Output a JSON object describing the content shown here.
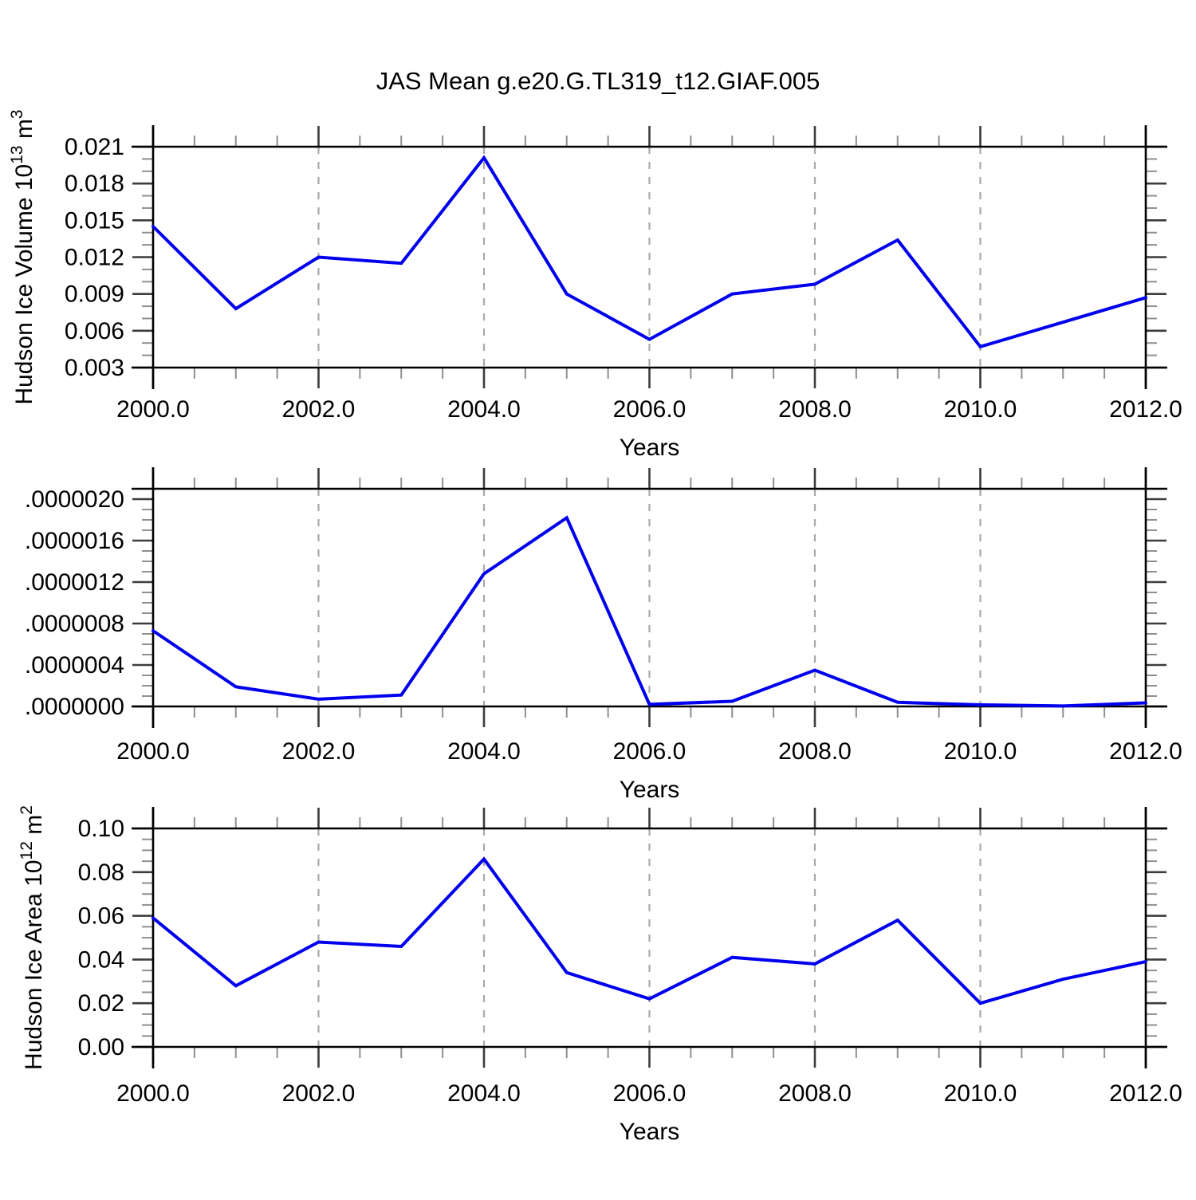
{
  "page_title": "JAS Mean g.e20.G.TL319_t12.GIAF.005",
  "colors": {
    "line": "#0000ee",
    "grid": "#a9a9a9",
    "frame": "#000000",
    "major_tick": "#3c3c3c",
    "minor_tick": "#8f8f8f",
    "text": "#000000",
    "background": "#ffffff"
  },
  "x_axis": {
    "label": "Years",
    "tick_labels": [
      "2000.0",
      "2002.0",
      "2004.0",
      "2006.0",
      "2008.0",
      "2010.0",
      "2012.0"
    ],
    "min": 2000,
    "max": 2012,
    "major_step": 2,
    "minor_step": 0.5,
    "grid_years": [
      2002,
      2004,
      2006,
      2008,
      2010
    ]
  },
  "chart_data": [
    {
      "type": "line",
      "name": "hudson-ice-volume",
      "ylabel_text": "Hudson Ice Volume 10¹³ m³",
      "ylabel_parts": [
        [
          "Hudson Ice Volume 10",
          false
        ],
        [
          "13",
          true
        ],
        [
          " m",
          false
        ],
        [
          "3",
          true
        ]
      ],
      "xlabel": "Years",
      "x": [
        2000,
        2001,
        2002,
        2003,
        2004,
        2005,
        2006,
        2007,
        2008,
        2009,
        2010,
        2011,
        2012
      ],
      "y": [
        0.0145,
        0.0078,
        0.012,
        0.0115,
        0.0201,
        0.009,
        0.0053,
        0.009,
        0.0098,
        0.0134,
        0.0047,
        0.0067,
        0.0087
      ],
      "ylim": [
        0.003,
        0.021
      ],
      "ymajor": 0.003,
      "yminor": 0.001,
      "ytick_labels": [
        "0.003",
        "0.006",
        "0.009",
        "0.012",
        "0.015",
        "0.018",
        "0.021"
      ],
      "xlim": [
        2000,
        2012
      ],
      "grid": "vertical-dashed",
      "legend": "none"
    },
    {
      "type": "line",
      "name": "middle-series",
      "ylabel_text": "",
      "ylabel_parts": [],
      "xlabel": "Years",
      "x": [
        2000,
        2001,
        2002,
        2003,
        2004,
        2005,
        2006,
        2007,
        2008,
        2009,
        2010,
        2011,
        2012
      ],
      "y": [
        7.3e-07,
        1.9e-07,
        7e-08,
        1.1e-07,
        1.28e-06,
        1.82e-06,
        2e-08,
        5e-08,
        3.5e-07,
        4e-08,
        1.5e-08,
        5e-09,
        3.5e-08
      ],
      "ylim": [
        0.0,
        2.1e-06
      ],
      "ymajor": 4e-07,
      "yminor": 1e-07,
      "ytick_labels": [
        ".0000000",
        ".0000004",
        ".0000008",
        ".0000012",
        ".0000016",
        ".0000020"
      ],
      "xlim": [
        2000,
        2012
      ],
      "grid": "vertical-dashed",
      "legend": "none"
    },
    {
      "type": "line",
      "name": "hudson-ice-area",
      "ylabel_text": "Hudson Ice Area 10¹² m²",
      "ylabel_parts": [
        [
          "Hudson Ice Area 10",
          false
        ],
        [
          "12",
          true
        ],
        [
          " m",
          false
        ],
        [
          "2",
          true
        ]
      ],
      "xlabel": "Years",
      "x": [
        2000,
        2001,
        2002,
        2003,
        2004,
        2005,
        2006,
        2007,
        2008,
        2009,
        2010,
        2011,
        2012
      ],
      "y": [
        0.059,
        0.028,
        0.048,
        0.046,
        0.086,
        0.034,
        0.022,
        0.041,
        0.038,
        0.058,
        0.02,
        0.031,
        0.039
      ],
      "ylim": [
        0.0,
        0.1
      ],
      "ymajor": 0.02,
      "yminor": 0.005,
      "ytick_labels": [
        "0.00",
        "0.02",
        "0.04",
        "0.06",
        "0.08",
        "0.10"
      ],
      "xlim": [
        2000,
        2012
      ],
      "grid": "vertical-dashed",
      "legend": "none"
    }
  ]
}
